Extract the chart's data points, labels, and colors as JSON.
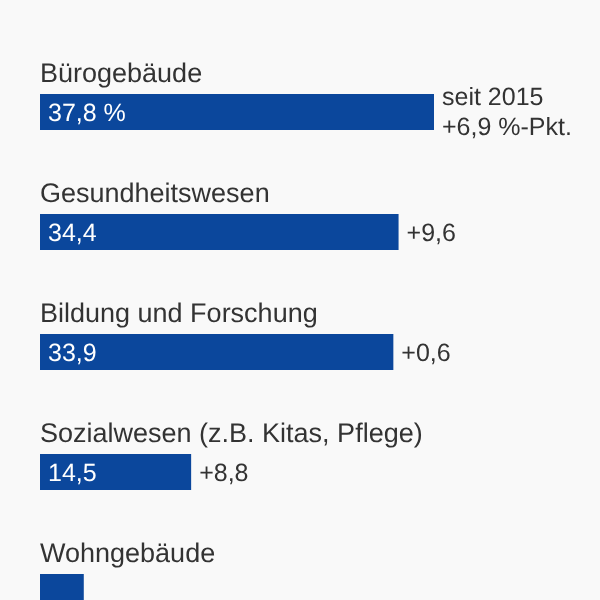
{
  "chart_data": {
    "type": "bar",
    "orientation": "horizontal",
    "categories": [
      "Bürogebäude",
      "Gesundheitswesen",
      "Bildung und Forschung",
      "Sozialwesen (z.B. Kitas, Pflege)",
      "Wohngebäude"
    ],
    "values": [
      37.8,
      34.4,
      33.9,
      14.5,
      4.2
    ],
    "value_labels": [
      "37,8 %",
      "34,4",
      "33,9",
      "14,5",
      null
    ],
    "color": "#0b479c",
    "annotations": [
      {
        "text": "seit 2015 +6,9 %-Pkt.",
        "x": 37.8,
        "y": "Bürogebäude"
      },
      {
        "text": "+9,6",
        "x": 34.4,
        "y": "Gesundheitswesen"
      },
      {
        "text": "+0,6",
        "x": 33.9,
        "y": "Bildung und Forschung"
      },
      {
        "text": "+8,8",
        "x": 14.5,
        "y": "Sozialwesen (z.B. Kitas, Pflege)"
      }
    ]
  }
}
